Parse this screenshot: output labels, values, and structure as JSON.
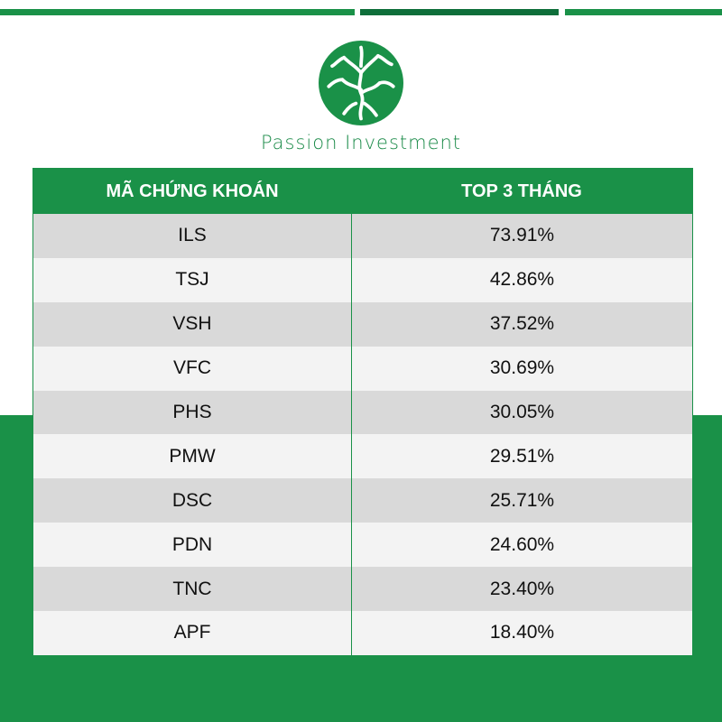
{
  "brand": {
    "name": "Passion Investment"
  },
  "colors": {
    "brand_green": "#1a9148",
    "dark_green": "#0e6e3a"
  },
  "table": {
    "headers": [
      "MÃ CHỨNG KHOÁN",
      "TOP 3 THÁNG"
    ],
    "rows": [
      [
        "ILS",
        "73.91%"
      ],
      [
        "TSJ",
        "42.86%"
      ],
      [
        "VSH",
        "37.52%"
      ],
      [
        "VFC",
        "30.69%"
      ],
      [
        "PHS",
        "30.05%"
      ],
      [
        "PMW",
        "29.51%"
      ],
      [
        "DSC",
        "25.71%"
      ],
      [
        "PDN",
        "24.60%"
      ],
      [
        "TNC",
        "23.40%"
      ],
      [
        "APF",
        "18.40%"
      ]
    ]
  }
}
